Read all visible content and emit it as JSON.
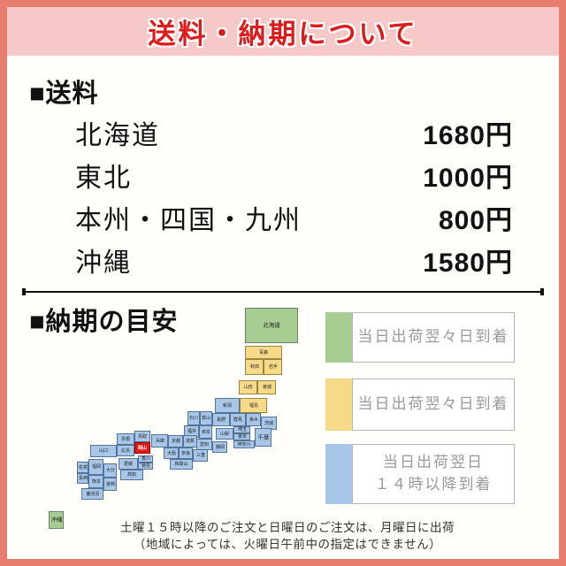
{
  "header": {
    "title": "送料・納期について"
  },
  "shipping": {
    "heading": "■送料",
    "rows": [
      {
        "region": "北海道",
        "price": "1680円"
      },
      {
        "region": "東北",
        "price": "1000円"
      },
      {
        "region": "本州・四国・九州",
        "price": "800円"
      },
      {
        "region": "沖縄",
        "price": "1580円"
      }
    ]
  },
  "delivery": {
    "heading": "■納期の目安",
    "legend": [
      {
        "swatch": "green",
        "color": "#a7cd93",
        "lines": [
          "当日出荷翌々日到着"
        ]
      },
      {
        "swatch": "yellow",
        "color": "#f7da88",
        "lines": [
          "当日出荷翌々日到着"
        ]
      },
      {
        "swatch": "blue",
        "color": "#a8c7e8",
        "lines": [
          "当日出荷翌日",
          "１４時以降到着"
        ]
      }
    ],
    "map": {
      "origin_prefecture": "岡山",
      "tiles": [
        [
          "北海道",
          277,
          348,
          60,
          40,
          "g"
        ],
        [
          "青森",
          277,
          391,
          42,
          15,
          "y"
        ],
        [
          "秋田",
          277,
          406,
          21,
          18,
          "y"
        ],
        [
          "岩手",
          298,
          406,
          21,
          18,
          "y"
        ],
        [
          "山形",
          270,
          430,
          21,
          16,
          "y"
        ],
        [
          "宮城",
          291,
          430,
          21,
          16,
          "y"
        ],
        [
          "新潟",
          243,
          450,
          28,
          17,
          "b"
        ],
        [
          "福島",
          271,
          450,
          31,
          17,
          "y"
        ],
        [
          "石川",
          212,
          465,
          14,
          16,
          "b"
        ],
        [
          "富山",
          226,
          465,
          14,
          16,
          "b"
        ],
        [
          "長野",
          240,
          467,
          20,
          15,
          "b"
        ],
        [
          "群馬",
          260,
          467,
          18,
          15,
          "b"
        ],
        [
          "栃木",
          278,
          467,
          17,
          15,
          "b"
        ],
        [
          "茨城",
          295,
          471,
          18,
          15,
          "b"
        ],
        [
          "福井",
          208,
          481,
          17,
          14,
          "b"
        ],
        [
          "岐阜",
          225,
          481,
          15,
          15,
          "b"
        ],
        [
          "山梨",
          244,
          484,
          20,
          13,
          "b"
        ],
        [
          "埼玉",
          264,
          482,
          19,
          8,
          "b"
        ],
        [
          "東京",
          264,
          490,
          19,
          8,
          "b"
        ],
        [
          "千葉",
          288,
          484,
          19,
          21,
          "b"
        ],
        [
          "神奈川",
          264,
          498,
          24,
          9,
          "b"
        ],
        [
          "愛知",
          222,
          496,
          18,
          13,
          "b"
        ],
        [
          "静岡",
          240,
          499,
          17,
          13,
          "b"
        ],
        [
          "兵庫",
          171,
          491,
          19,
          15,
          "b"
        ],
        [
          "京都",
          190,
          492,
          17,
          14,
          "b"
        ],
        [
          "滋賀",
          207,
          492,
          16,
          14,
          "b"
        ],
        [
          "大阪",
          185,
          506,
          17,
          13,
          "b"
        ],
        [
          "奈良",
          202,
          506,
          16,
          13,
          "b"
        ],
        [
          "三重",
          218,
          508,
          17,
          14,
          "b"
        ],
        [
          "和歌山",
          192,
          519,
          26,
          12,
          "b"
        ],
        [
          "鳥取",
          152,
          487,
          18,
          13,
          "b"
        ],
        [
          "島根",
          132,
          490,
          20,
          13,
          "b"
        ],
        [
          "岡山",
          152,
          500,
          18,
          13,
          "r"
        ],
        [
          "広島",
          132,
          503,
          20,
          13,
          "b"
        ],
        [
          "山口",
          102,
          503,
          30,
          14,
          "b"
        ],
        [
          "香川",
          156,
          515,
          17,
          8,
          "b"
        ],
        [
          "徳島",
          156,
          523,
          17,
          8,
          "b"
        ],
        [
          "愛媛",
          134,
          518,
          22,
          13,
          "b"
        ],
        [
          "高知",
          136,
          531,
          26,
          12,
          "b"
        ],
        [
          "福岡",
          100,
          519,
          17,
          18,
          "b"
        ],
        [
          "佐賀",
          87,
          522,
          13,
          13,
          "b"
        ],
        [
          "大分",
          117,
          524,
          15,
          16,
          "b"
        ],
        [
          "長崎",
          87,
          535,
          13,
          12,
          "b"
        ],
        [
          "熊本",
          100,
          537,
          17,
          15,
          "b"
        ],
        [
          "宮崎",
          117,
          540,
          15,
          15,
          "b"
        ],
        [
          "鹿児島",
          92,
          552,
          25,
          13,
          "b"
        ],
        [
          "沖縄",
          55,
          578,
          17,
          20,
          "g"
        ]
      ]
    },
    "note_lines": [
      "土曜１５時以降のご注文と日曜日のご注文は、月曜日に出荷",
      "（地域によっては、火曜日午前中の指定はできません）"
    ]
  },
  "colors": {
    "frame": "#e87e70",
    "header_bg": "#f6c8c8",
    "title_red": "#dd1b1b",
    "page_bg": "#fffefa",
    "map_green": "#a7cd93",
    "map_yellow": "#f7da88",
    "map_blue": "#a8c7e8",
    "map_red": "#e01818",
    "legend_text": "#999999"
  }
}
